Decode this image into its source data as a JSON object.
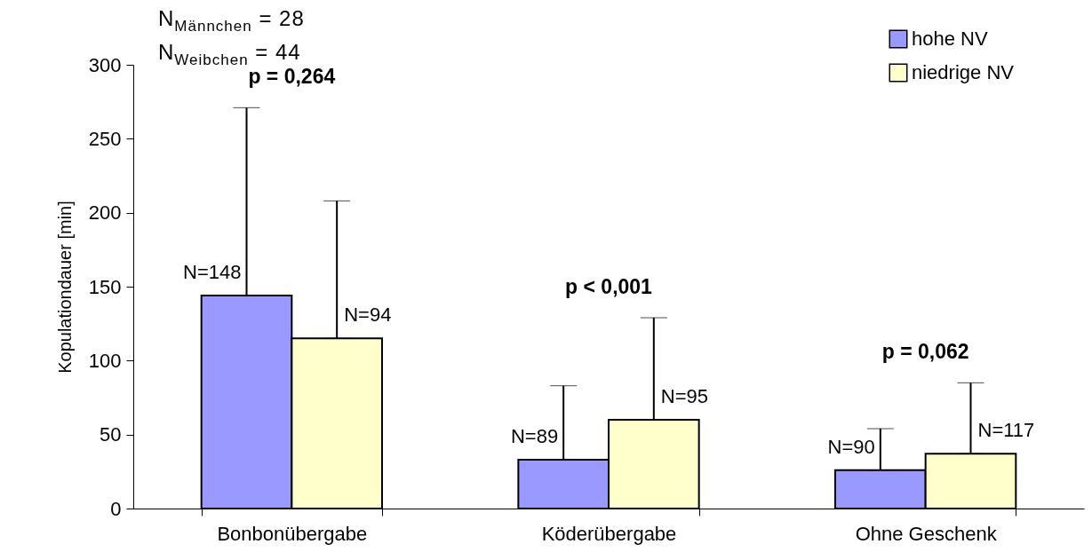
{
  "chart_data": {
    "type": "bar",
    "ylabel": "Kopulationdauer [min]",
    "categories": [
      "Bonbonübergabe",
      "Köderübergabe",
      "Ohne Geschenk"
    ],
    "series": [
      {
        "name": "hohe NV",
        "color": "#9999ff",
        "values": [
          144,
          33,
          26
        ],
        "errors": [
          [
            144,
            271
          ],
          [
            33,
            83
          ],
          [
            26,
            54
          ]
        ]
      },
      {
        "name": "niedrige NV",
        "color": "#ffffcc",
        "values": [
          115,
          60,
          37
        ],
        "errors": [
          [
            115,
            208
          ],
          [
            60,
            129
          ],
          [
            37,
            85
          ]
        ]
      }
    ],
    "ylim": [
      0,
      300
    ],
    "yticks": [
      0,
      50,
      100,
      150,
      200,
      250,
      300
    ],
    "grid": false,
    "legend": "top right",
    "annotations": [
      "N$_{Männchen}$ = 28\nN$_{Weibchen}$ = 44",
      "p = 0,264",
      "p < 0,001",
      "p = 0,062",
      {
        "text": "N=148",
        "x": "Bonbonübergabe",
        "y": 144
      },
      {
        "text": "N=94",
        "x": "Bonbonübergabe",
        "y": 115
      },
      {
        "text": "N=89",
        "x": "Köderübergabe",
        "y": 33
      },
      {
        "text": "N=95",
        "x": "Köderübergabe",
        "y": 60
      },
      {
        "text": "N=90",
        "x": "Ohne Geschenk",
        "y": 26
      },
      {
        "text": "N=117",
        "x": "Ohne Geschenk",
        "y": 37
      }
    ]
  }
}
